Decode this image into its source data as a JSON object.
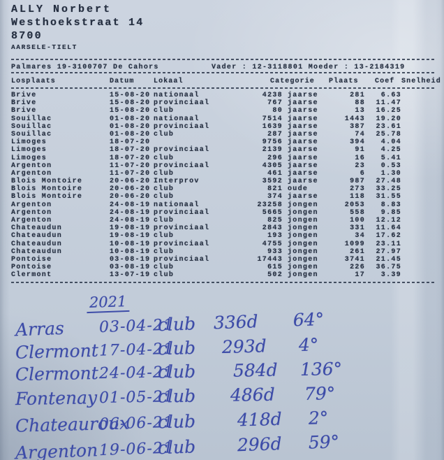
{
  "colors": {
    "paper": "#c7d0dc",
    "print_text": "#232d3f",
    "handwriting_ink": "#3d4ca8"
  },
  "owner": {
    "name": "ALLY Norbert",
    "street": "Westhoekstraat 14",
    "postal_code": "8700",
    "city": "AARSELE-TIELT"
  },
  "palmares": {
    "left": "Palmares 19-3100707 De Cahors",
    "right": "Vader : 12-3118801 Moeder : 13-2184319"
  },
  "table": {
    "headers": [
      "Losplaats",
      "Datum",
      "Lokaal",
      "Categorie",
      "Plaats",
      "Coef",
      "Snelheid"
    ],
    "rows": [
      {
        "losplaats": "Brive",
        "datum": "15-08-20",
        "lokaal": "nationaal",
        "cat_n": "4238",
        "cat_t": "jaarse",
        "plaats": "281",
        "coef": "6.63",
        "snelheid": ""
      },
      {
        "losplaats": "Brive",
        "datum": "15-08-20",
        "lokaal": "provinciaal",
        "cat_n": "767",
        "cat_t": "jaarse",
        "plaats": "88",
        "coef": "11.47",
        "snelheid": ""
      },
      {
        "losplaats": "Brive",
        "datum": "15-08-20",
        "lokaal": "club",
        "cat_n": "80",
        "cat_t": "jaarse",
        "plaats": "13",
        "coef": "16.25",
        "snelheid": ""
      },
      {
        "losplaats": "Souillac",
        "datum": "01-08-20",
        "lokaal": "nationaal",
        "cat_n": "7514",
        "cat_t": "jaarse",
        "plaats": "1443",
        "coef": "19.20",
        "snelheid": ""
      },
      {
        "losplaats": "Souillac",
        "datum": "01-08-20",
        "lokaal": "provinciaal",
        "cat_n": "1639",
        "cat_t": "jaarse",
        "plaats": "387",
        "coef": "23.61",
        "snelheid": ""
      },
      {
        "losplaats": "Souillac",
        "datum": "01-08-20",
        "lokaal": "club",
        "cat_n": "287",
        "cat_t": "jaarse",
        "plaats": "74",
        "coef": "25.78",
        "snelheid": ""
      },
      {
        "losplaats": "Limoges",
        "datum": "18-07-20",
        "lokaal": "",
        "cat_n": "9756",
        "cat_t": "jaarse",
        "plaats": "394",
        "coef": "4.04",
        "snelheid": ""
      },
      {
        "losplaats": "Limoges",
        "datum": "18-07-20",
        "lokaal": "provinciaal",
        "cat_n": "2139",
        "cat_t": "jaarse",
        "plaats": "91",
        "coef": "4.25",
        "snelheid": ""
      },
      {
        "losplaats": "Limoges",
        "datum": "18-07-20",
        "lokaal": "club",
        "cat_n": "296",
        "cat_t": "jaarse",
        "plaats": "16",
        "coef": "5.41",
        "snelheid": ""
      },
      {
        "losplaats": "Argenton",
        "datum": "11-07-20",
        "lokaal": "provinciaal",
        "cat_n": "4305",
        "cat_t": "jaarse",
        "plaats": "23",
        "coef": "0.53",
        "snelheid": ""
      },
      {
        "losplaats": "Argenton",
        "datum": "11-07-20",
        "lokaal": "club",
        "cat_n": "461",
        "cat_t": "jaarse",
        "plaats": "6",
        "coef": "1.30",
        "snelheid": ""
      },
      {
        "losplaats": "Blois Montoire",
        "datum": "20-06-20",
        "lokaal": "Interprov",
        "cat_n": "3592",
        "cat_t": "jaarse",
        "plaats": "987",
        "coef": "27.48",
        "snelheid": ""
      },
      {
        "losplaats": "Blois Montoire",
        "datum": "20-06-20",
        "lokaal": "club",
        "cat_n": "821",
        "cat_t": "oude",
        "plaats": "273",
        "coef": "33.25",
        "snelheid": ""
      },
      {
        "losplaats": "Blois Montoire",
        "datum": "20-06-20",
        "lokaal": "club",
        "cat_n": "374",
        "cat_t": "jaarse",
        "plaats": "118",
        "coef": "31.55",
        "snelheid": ""
      },
      {
        "losplaats": "Argenton",
        "datum": "24-08-19",
        "lokaal": "nationaal",
        "cat_n": "23258",
        "cat_t": "jongen",
        "plaats": "2053",
        "coef": "8.83",
        "snelheid": ""
      },
      {
        "losplaats": "Argenton",
        "datum": "24-08-19",
        "lokaal": "provinciaal",
        "cat_n": "5665",
        "cat_t": "jongen",
        "plaats": "558",
        "coef": "9.85",
        "snelheid": ""
      },
      {
        "losplaats": "Argenton",
        "datum": "24-08-19",
        "lokaal": "club",
        "cat_n": "825",
        "cat_t": "jongen",
        "plaats": "100",
        "coef": "12.12",
        "snelheid": ""
      },
      {
        "losplaats": "Chateaudun",
        "datum": "19-08-19",
        "lokaal": "provinciaal",
        "cat_n": "2843",
        "cat_t": "jongen",
        "plaats": "331",
        "coef": "11.64",
        "snelheid": ""
      },
      {
        "losplaats": "Chateaudun",
        "datum": "19-08-19",
        "lokaal": "club",
        "cat_n": "193",
        "cat_t": "jongen",
        "plaats": "34",
        "coef": "17.62",
        "snelheid": ""
      },
      {
        "losplaats": "Chateaudun",
        "datum": "10-08-19",
        "lokaal": "provinciaal",
        "cat_n": "4755",
        "cat_t": "jongen",
        "plaats": "1099",
        "coef": "23.11",
        "snelheid": ""
      },
      {
        "losplaats": "Chateaudun",
        "datum": "10-08-19",
        "lokaal": "club",
        "cat_n": "933",
        "cat_t": "jongen",
        "plaats": "261",
        "coef": "27.97",
        "snelheid": ""
      },
      {
        "losplaats": "Pontoise",
        "datum": "03-08-19",
        "lokaal": "provinciaal",
        "cat_n": "17443",
        "cat_t": "jongen",
        "plaats": "3741",
        "coef": "21.45",
        "snelheid": ""
      },
      {
        "losplaats": "Pontoise",
        "datum": "03-08-19",
        "lokaal": "club",
        "cat_n": "615",
        "cat_t": "jongen",
        "plaats": "226",
        "coef": "36.75",
        "snelheid": ""
      },
      {
        "losplaats": "Clermont",
        "datum": "13-07-19",
        "lokaal": "club",
        "cat_n": "502",
        "cat_t": "jongen",
        "plaats": "17",
        "coef": "3.39",
        "snelheid": ""
      }
    ]
  },
  "handwritten": {
    "year": "2021",
    "rows": [
      {
        "place": "Arras",
        "date": "03-04-21",
        "level": "club",
        "birds": "336d",
        "position": "64°"
      },
      {
        "place": "Clermont",
        "date": "17-04-21",
        "level": "club",
        "birds": "293d",
        "position": "4°"
      },
      {
        "place": "Clermont",
        "date": "24-04-21",
        "level": "club",
        "birds": "584d",
        "position": "136°"
      },
      {
        "place": "Fontenay",
        "date": "01-05-21",
        "level": "club",
        "birds": "486d",
        "position": "79°"
      },
      {
        "place": "Chateauroux",
        "date": "06-06-21",
        "level": "club",
        "birds": "418d",
        "position": "2°"
      },
      {
        "place": "Argenton",
        "date": "19-06-21",
        "level": "club",
        "birds": "296d",
        "position": "59°"
      }
    ]
  }
}
